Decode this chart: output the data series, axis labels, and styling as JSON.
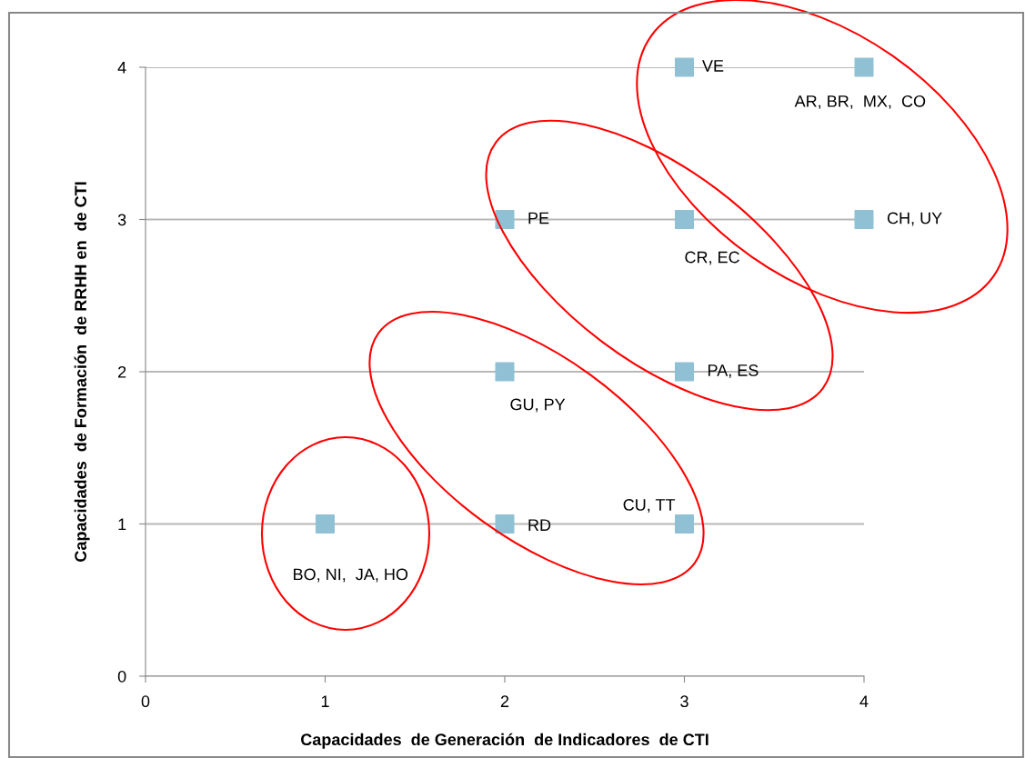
{
  "chart_data": {
    "type": "scatter",
    "xlabel": "Capacidades  de Generación  de Indicadores  de CTI",
    "ylabel": "Capacidades  de Formación  de RRHH en  de CTI",
    "x": [
      3,
      4,
      4,
      2,
      3,
      3,
      2,
      3,
      2,
      1
    ],
    "series": [
      {
        "color": "#8fc0d4",
        "values": [
          4,
          4,
          3,
          3,
          3,
          2,
          2,
          1,
          1,
          1
        ]
      }
    ],
    "annotations": [
      {
        "text": "VE",
        "x": 3,
        "y": 4
      },
      {
        "text": "AR, BR,  MX,  CO",
        "x": 4,
        "y": 4
      },
      {
        "text": "CH, UY",
        "x": 4,
        "y": 3
      },
      {
        "text": "PE",
        "x": 2,
        "y": 3
      },
      {
        "text": "CR, EC",
        "x": 3,
        "y": 3
      },
      {
        "text": "PA, ES",
        "x": 3,
        "y": 2
      },
      {
        "text": "GU, PY",
        "x": 2,
        "y": 2
      },
      {
        "text": "CU, TT",
        "x": 3,
        "y": 1
      },
      {
        "text": "RD",
        "x": 2,
        "y": 1
      },
      {
        "text": "BO, NI,  JA, HO",
        "x": 1,
        "y": 1
      }
    ],
    "xlim": [
      0,
      4
    ],
    "ylim": [
      0,
      4
    ],
    "xticks": [
      0,
      1,
      2,
      3,
      4
    ],
    "yticks": [
      0,
      1,
      2,
      3,
      4
    ],
    "grid": "y",
    "marker": "square"
  }
}
